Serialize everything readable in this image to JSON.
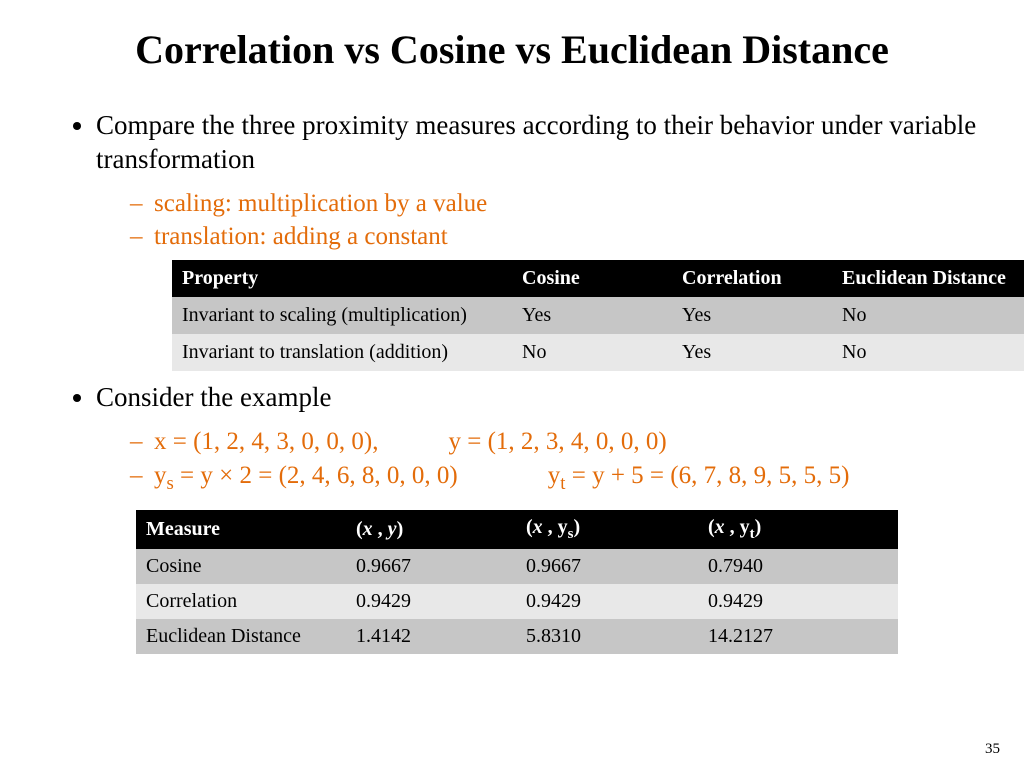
{
  "title": "Correlation vs Cosine vs Euclidean Distance",
  "bullets": {
    "b1": "Compare the three proximity measures according to their behavior under variable transformation",
    "b1_sub": {
      "s1": "scaling: multiplication by a value",
      "s2": "translation: adding a constant"
    },
    "b2": "Consider the example",
    "b2_sub": {
      "x_lhs": "x = (1, 2, 4, 3, 0, 0, 0),",
      "y_rhs": "y = (1, 2, 3, 4, 0, 0, 0)",
      "ys_lhs_pre": "y",
      "ys_lhs_sub": "s",
      "ys_lhs_post": "  = y × 2 = (2, 4, 6, 8, 0, 0, 0)",
      "yt_rhs_pre": "y",
      "yt_rhs_sub": "t",
      "yt_rhs_post": "  = y + 5 = (6, 7, 8, 9, 5, 5, 5)"
    }
  },
  "table1": {
    "columns": [
      "Property",
      "Cosine",
      "Correlation",
      "Euclidean Distance"
    ],
    "rows": [
      [
        "Invariant to scaling (multiplication)",
        "Yes",
        "Yes",
        "No"
      ],
      [
        "Invariant to translation (addition)",
        "No",
        "Yes",
        "No"
      ]
    ],
    "header_bg": "#000000",
    "header_fg": "#ffffff",
    "row_dark_bg": "#c6c6c6",
    "row_light_bg": "#e8e8e8",
    "font_size": 20
  },
  "table2": {
    "columns": {
      "c1": "Measure",
      "c2_open": "(",
      "c2_x": "x ",
      "c2_comma": ", ",
      "c2_y": "y",
      "c2_close": ")",
      "c3_open": "(",
      "c3_x": "x ",
      "c3_comma": ", ",
      "c3_y": "y",
      "c3_sub": "s",
      "c3_close": ")",
      "c4_open": "(",
      "c4_x": "x ",
      "c4_comma": ", ",
      "c4_y": " y",
      "c4_sub": "t",
      "c4_close": ")"
    },
    "rows": [
      [
        "Cosine",
        "0.9667",
        "0.9667",
        "0.7940"
      ],
      [
        "Correlation",
        "0.9429",
        "0.9429",
        "0.9429"
      ],
      [
        "Euclidean Distance",
        "1.4142",
        "5.8310",
        "14.2127"
      ]
    ],
    "header_bg": "#000000",
    "header_fg": "#ffffff",
    "row_dark_bg": "#c6c6c6",
    "row_light_bg": "#e8e8e8",
    "font_size": 20
  },
  "page_number": "35",
  "colors": {
    "accent": "#e36c0a",
    "background": "#ffffff",
    "text": "#000000"
  }
}
